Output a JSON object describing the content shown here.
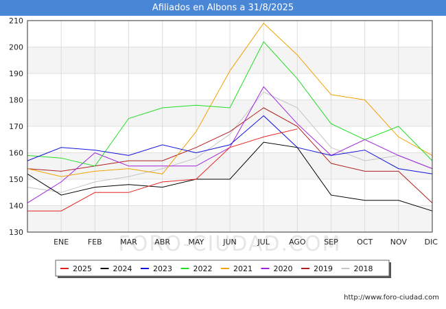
{
  "chart_data": {
    "type": "line",
    "title": "Afiliados en Albons a 31/8/2025",
    "xlabel": "",
    "ylabel": "",
    "categories": [
      "",
      "ENE",
      "FEB",
      "MAR",
      "ABR",
      "MAY",
      "JUN",
      "JUL",
      "AGO",
      "SEP",
      "OCT",
      "NOV",
      "DIC"
    ],
    "ylim": [
      130,
      210
    ],
    "yticks": [
      130,
      140,
      150,
      160,
      170,
      180,
      190,
      200,
      210
    ],
    "grid": true,
    "legend_position": "bottom",
    "watermark": "FORO-CIUDAD.COM",
    "series": [
      {
        "name": "2025",
        "color": "#e8201d",
        "values": [
          138,
          138,
          145,
          145,
          149,
          150,
          162,
          166,
          169,
          null,
          null,
          null,
          null
        ]
      },
      {
        "name": "2024",
        "color": "#000000",
        "values": [
          152,
          144,
          147,
          148,
          147,
          150,
          150,
          164,
          162,
          144,
          142,
          142,
          138
        ]
      },
      {
        "name": "2023",
        "color": "#1010dd",
        "values": [
          157,
          162,
          161,
          159,
          163,
          160,
          163,
          174,
          162,
          159,
          161,
          154,
          152
        ]
      },
      {
        "name": "2022",
        "color": "#22dd22",
        "values": [
          159,
          158,
          155,
          173,
          177,
          178,
          177,
          202,
          188,
          171,
          165,
          170,
          157
        ]
      },
      {
        "name": "2021",
        "color": "#f2a100",
        "values": [
          154,
          151,
          153,
          154,
          152,
          168,
          191,
          209,
          197,
          182,
          180,
          166,
          159
        ]
      },
      {
        "name": "2020",
        "color": "#a020e0",
        "values": [
          141,
          149,
          160,
          155,
          155,
          155,
          162,
          185,
          171,
          159,
          165,
          159,
          154
        ]
      },
      {
        "name": "2019",
        "color": "#b01e1e",
        "values": [
          154,
          153,
          155,
          157,
          157,
          162,
          168,
          177,
          170,
          156,
          153,
          153,
          141
        ]
      },
      {
        "name": "2018",
        "color": "#c4c4c4",
        "values": [
          147,
          145,
          149,
          151,
          154,
          158,
          167,
          183,
          177,
          162,
          157,
          159,
          154
        ]
      }
    ]
  },
  "footer": {
    "url": "http://www.foro-ciudad.com"
  }
}
